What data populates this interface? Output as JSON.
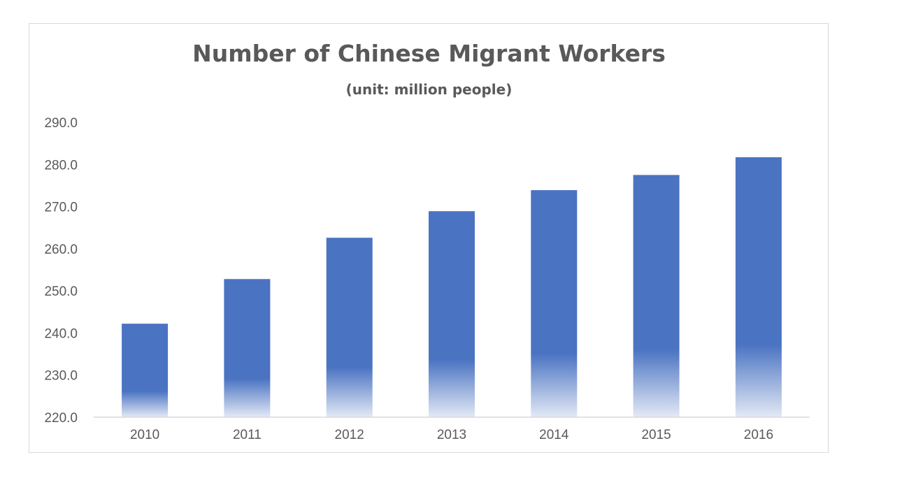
{
  "chart_data": {
    "type": "bar",
    "title": "Number of Chinese Migrant Workers",
    "subtitle": "(unit: million people)",
    "xlabel": "",
    "ylabel": "",
    "categories": [
      "2010",
      "2011",
      "2012",
      "2013",
      "2014",
      "2015",
      "2016"
    ],
    "values": [
      242.2,
      252.8,
      262.6,
      268.9,
      273.9,
      277.5,
      281.7
    ],
    "ylim": [
      220,
      290
    ],
    "yticks": [
      220,
      230,
      240,
      250,
      260,
      270,
      280,
      290
    ],
    "ytick_labels": [
      "220.0",
      "230.0",
      "240.0",
      "250.0",
      "260.0",
      "270.0",
      "280.0",
      "290.0"
    ],
    "grid": false,
    "legend": "none",
    "bar_color": "#4a73c2",
    "bar_fill_style": "gradient fading to white at bottom",
    "axis_color": "#d9d9d9",
    "text_color": "#595959"
  }
}
